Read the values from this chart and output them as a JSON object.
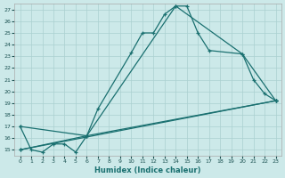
{
  "xlabel": "Humidex (Indice chaleur)",
  "bg_color": "#cce9e9",
  "grid_color": "#aad0d0",
  "line_color": "#1a7070",
  "xlim": [
    -0.5,
    23.5
  ],
  "ylim": [
    14.5,
    27.5
  ],
  "xticks": [
    0,
    1,
    2,
    3,
    4,
    5,
    6,
    7,
    8,
    9,
    10,
    11,
    12,
    13,
    14,
    15,
    16,
    17,
    18,
    19,
    20,
    21,
    22,
    23
  ],
  "yticks": [
    15,
    16,
    17,
    18,
    19,
    20,
    21,
    22,
    23,
    24,
    25,
    26,
    27
  ],
  "line1_x": [
    0,
    1,
    2,
    3,
    4,
    5,
    6,
    7,
    10,
    11,
    12,
    13,
    14,
    15,
    16,
    17,
    20,
    21,
    22,
    23
  ],
  "line1_y": [
    17,
    15,
    14.8,
    15.5,
    15.5,
    14.8,
    16.2,
    18.5,
    23.3,
    25,
    25,
    26.6,
    27.3,
    27.3,
    25,
    23.5,
    23.2,
    21,
    19.8,
    19.2
  ],
  "line2_x": [
    0,
    6,
    14,
    20,
    23
  ],
  "line2_y": [
    17,
    16.2,
    27.3,
    23.2,
    19.2
  ],
  "line3_x": [
    0,
    6,
    23
  ],
  "line3_y": [
    15,
    16.2,
    19.2
  ],
  "line4_x": [
    0,
    23
  ],
  "line4_y": [
    15,
    19.2
  ]
}
